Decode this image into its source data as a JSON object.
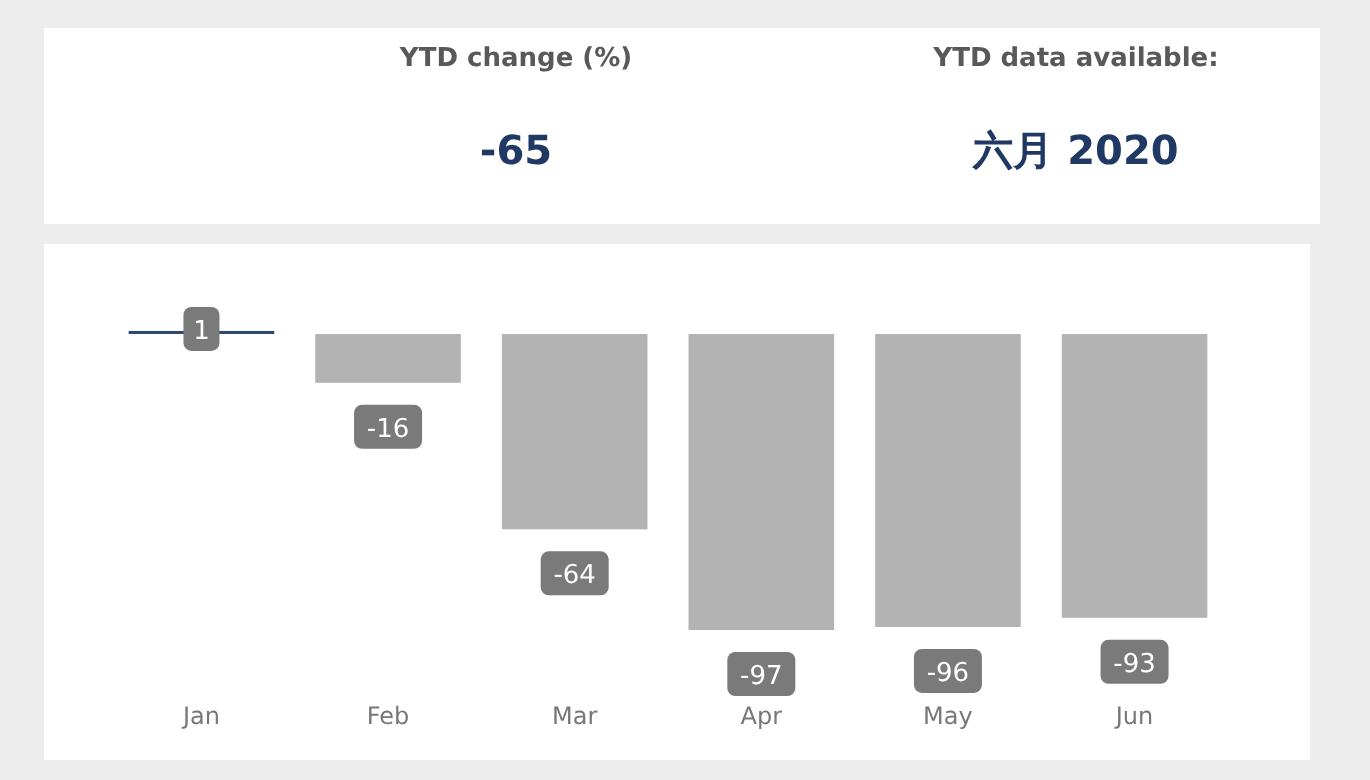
{
  "chart_data": [
    {
      "type": "other",
      "annotations": [
        "YTD change (%)",
        "-65",
        "YTD data available:",
        "六月 2020"
      ]
    },
    {
      "type": "bar",
      "categories": [
        "Jan",
        "Feb",
        "Mar",
        "Apr",
        "May",
        "Jun"
      ],
      "values": [
        1,
        -16,
        -64,
        -97,
        -96,
        -93
      ],
      "colors": [
        "#2e4a6b",
        "#b3b3b3",
        "#b3b3b3",
        "#b3b3b3",
        "#b3b3b3",
        "#b3b3b3"
      ],
      "relative": false,
      "data_labels": true
    }
  ]
}
